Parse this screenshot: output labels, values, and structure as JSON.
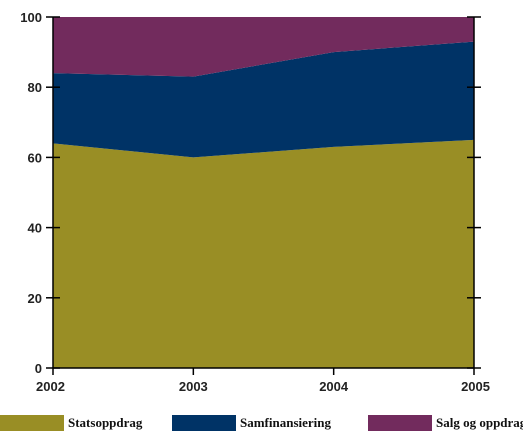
{
  "chart_data": {
    "type": "area",
    "stacked": true,
    "x": [
      "2002",
      "2003",
      "2004",
      "2005"
    ],
    "ylim": [
      0,
      100
    ],
    "yticks": [
      0,
      20,
      40,
      60,
      80,
      100
    ],
    "grid": false,
    "legend_position": "bottom",
    "series": [
      {
        "name": "Statsoppdrag",
        "values": [
          64,
          60,
          63,
          65
        ],
        "color": "#998e25"
      },
      {
        "name": "Samfinansiering",
        "values": [
          20,
          23,
          27,
          28
        ],
        "color": "#003366"
      },
      {
        "name": "Salg og oppdrag",
        "values": [
          16,
          17,
          10,
          7
        ],
        "color": "#722b5d"
      }
    ]
  }
}
